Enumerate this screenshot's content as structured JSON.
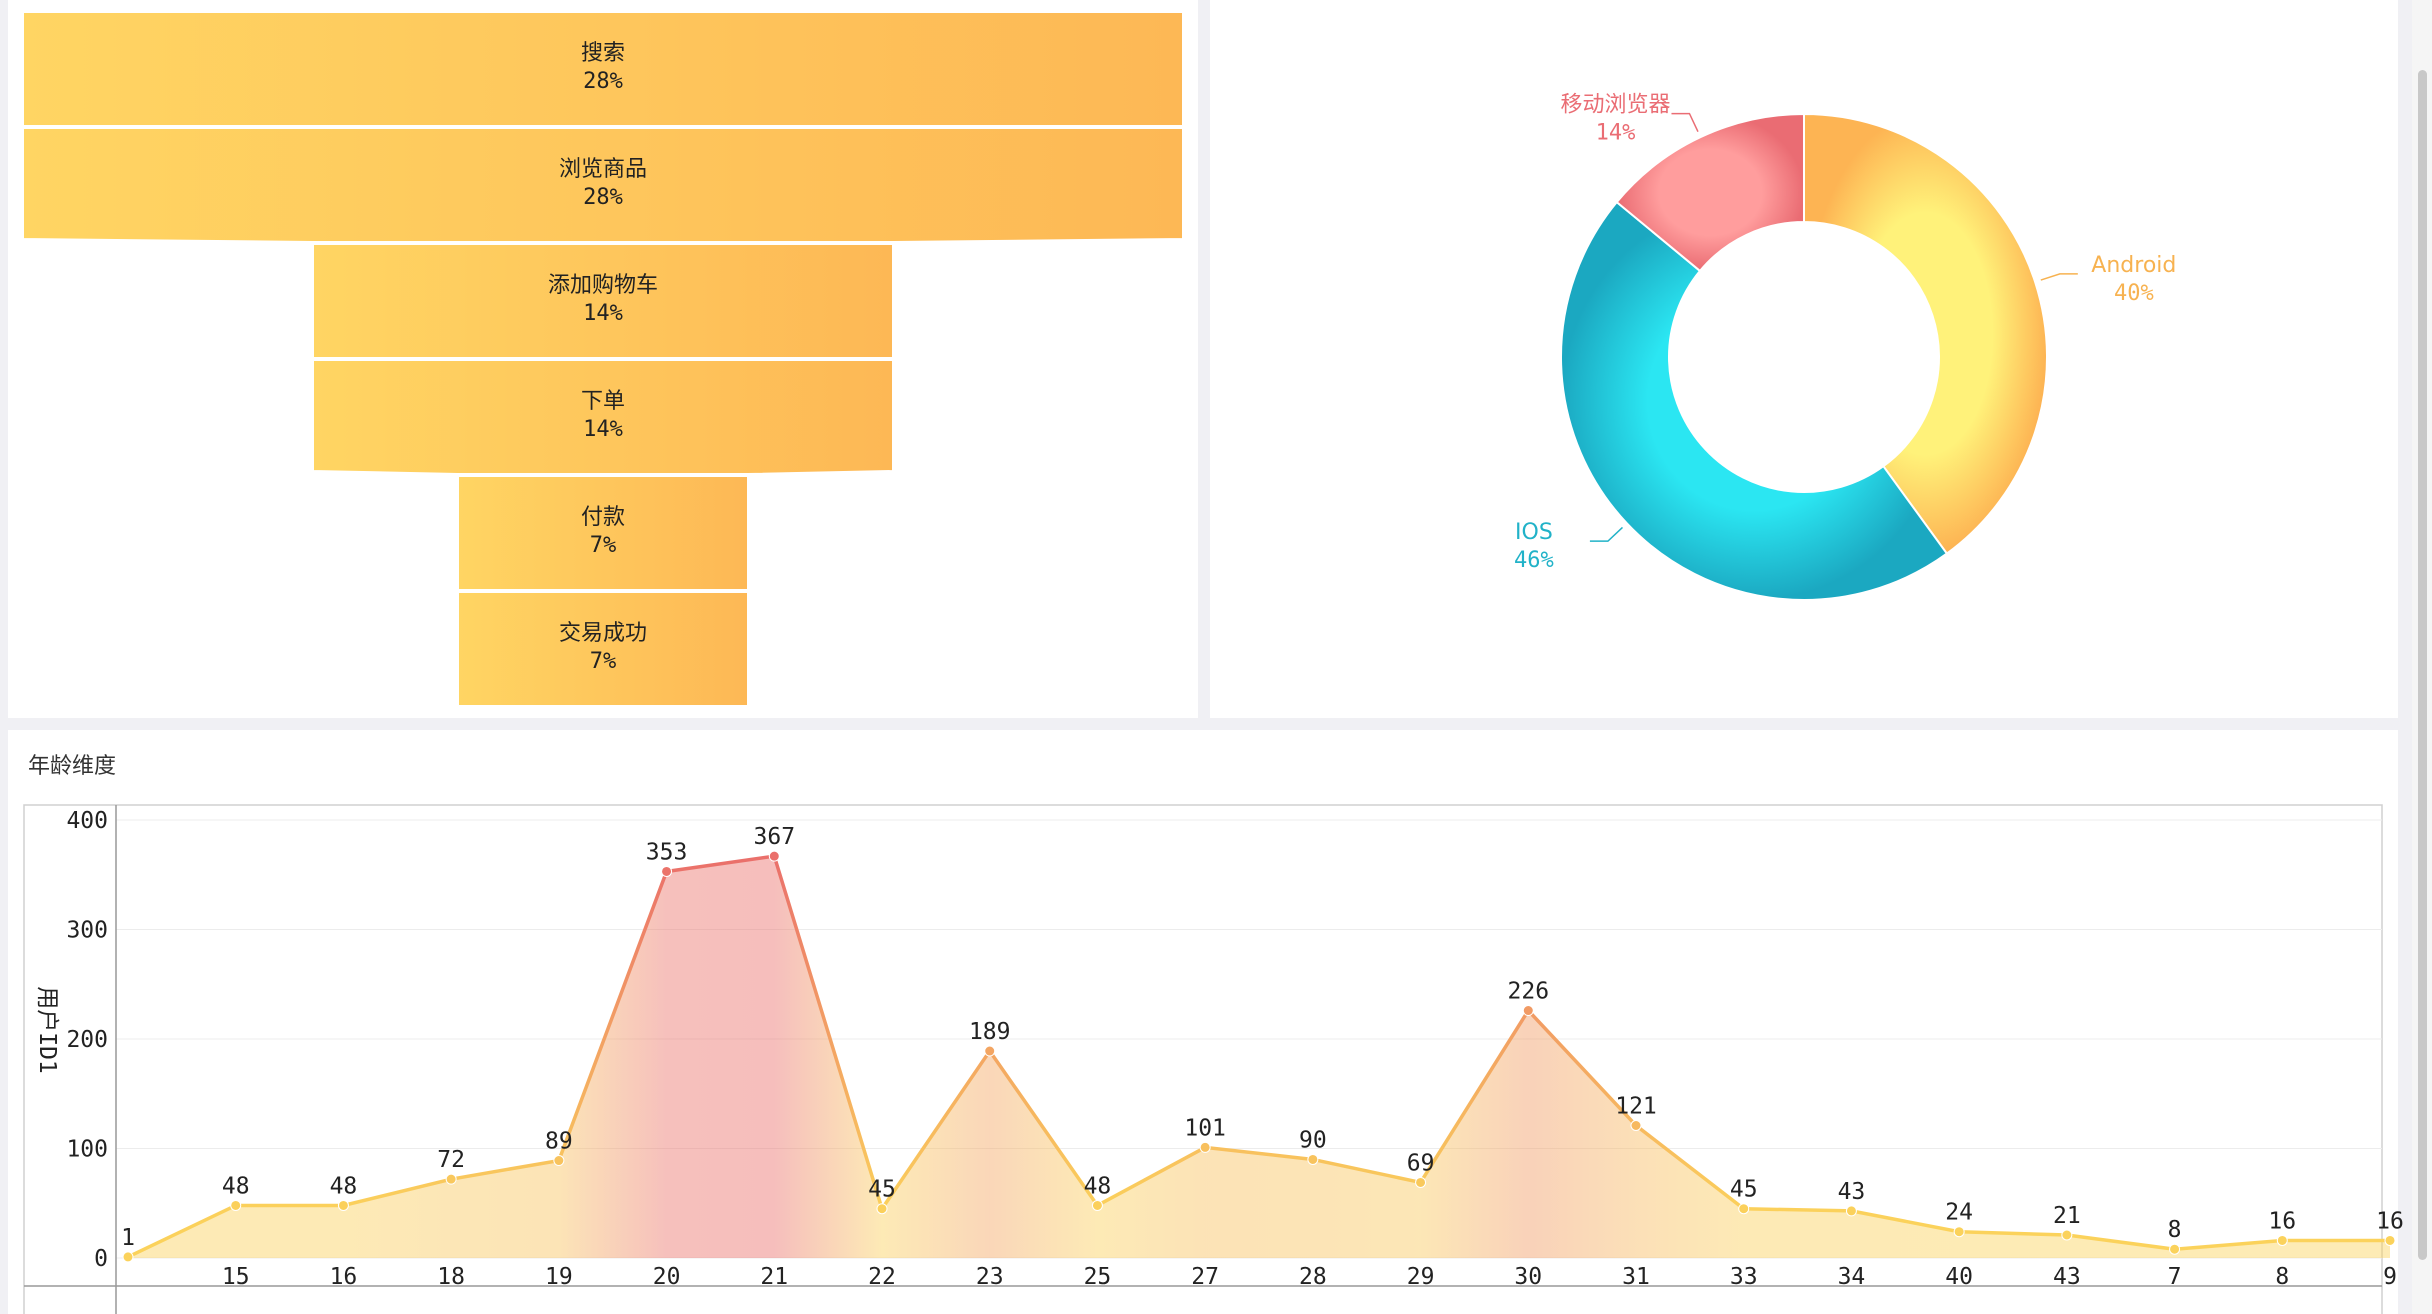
{
  "chart_data": [
    {
      "type": "funnel",
      "categories": [
        "搜索",
        "浏览商品",
        "添加购物车",
        "下单",
        "付款",
        "交易成功"
      ],
      "values": [
        28,
        28,
        14,
        14,
        7,
        7
      ],
      "value_labels": [
        "28%",
        "28%",
        "14%",
        "14%",
        "7%",
        "7%"
      ],
      "colors": [
        "#ffd563",
        "#fdb855"
      ]
    },
    {
      "type": "pie",
      "donut": true,
      "categories": [
        "Android",
        "IOS",
        "移动浏览器"
      ],
      "values": [
        40,
        46,
        14
      ],
      "value_labels": [
        "40%",
        "46%",
        "14%"
      ],
      "label_colors": [
        "#f7b250",
        "#21b2c8",
        "#ea6d74"
      ],
      "colors": [
        [
          "#fff27a",
          "#fdb453"
        ],
        [
          "#2be6f2",
          "#1ba8c1"
        ],
        [
          "#ff9d9d",
          "#ea6c73"
        ]
      ]
    },
    {
      "type": "area",
      "title": "年龄维度",
      "ylabel": "用户ID1",
      "categories": [
        "",
        "15",
        "16",
        "18",
        "19",
        "20",
        "21",
        "22",
        "23",
        "25",
        "27",
        "28",
        "29",
        "30",
        "31",
        "33",
        "34",
        "40",
        "43",
        "7",
        "8",
        "9"
      ],
      "values": [
        1,
        48,
        48,
        72,
        89,
        353,
        367,
        45,
        189,
        48,
        101,
        90,
        69,
        226,
        121,
        45,
        43,
        24,
        21,
        8,
        16,
        16
      ],
      "y_ticks": [
        0,
        100,
        200,
        300,
        400
      ],
      "grid": true,
      "colors": {
        "low": "#fbd25b",
        "high": "#ea6f6b"
      }
    }
  ]
}
